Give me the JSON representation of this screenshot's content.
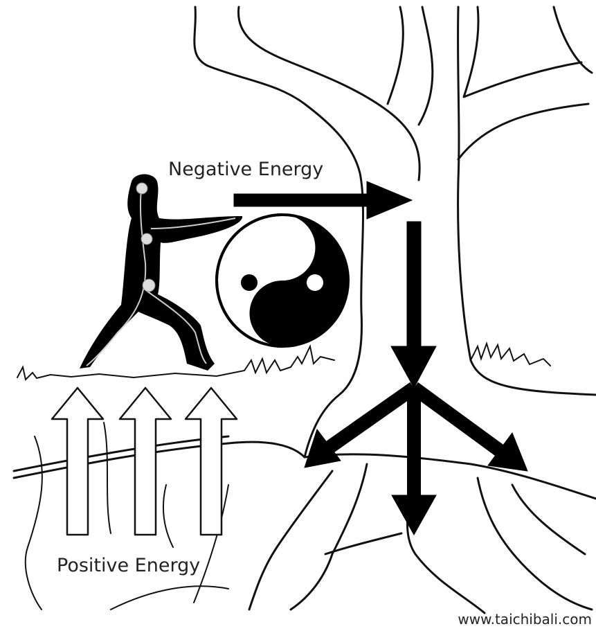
{
  "labels": {
    "negative": "Negative Energy",
    "positive": "Positive Energy"
  },
  "footer": "www.taichibali.com"
}
